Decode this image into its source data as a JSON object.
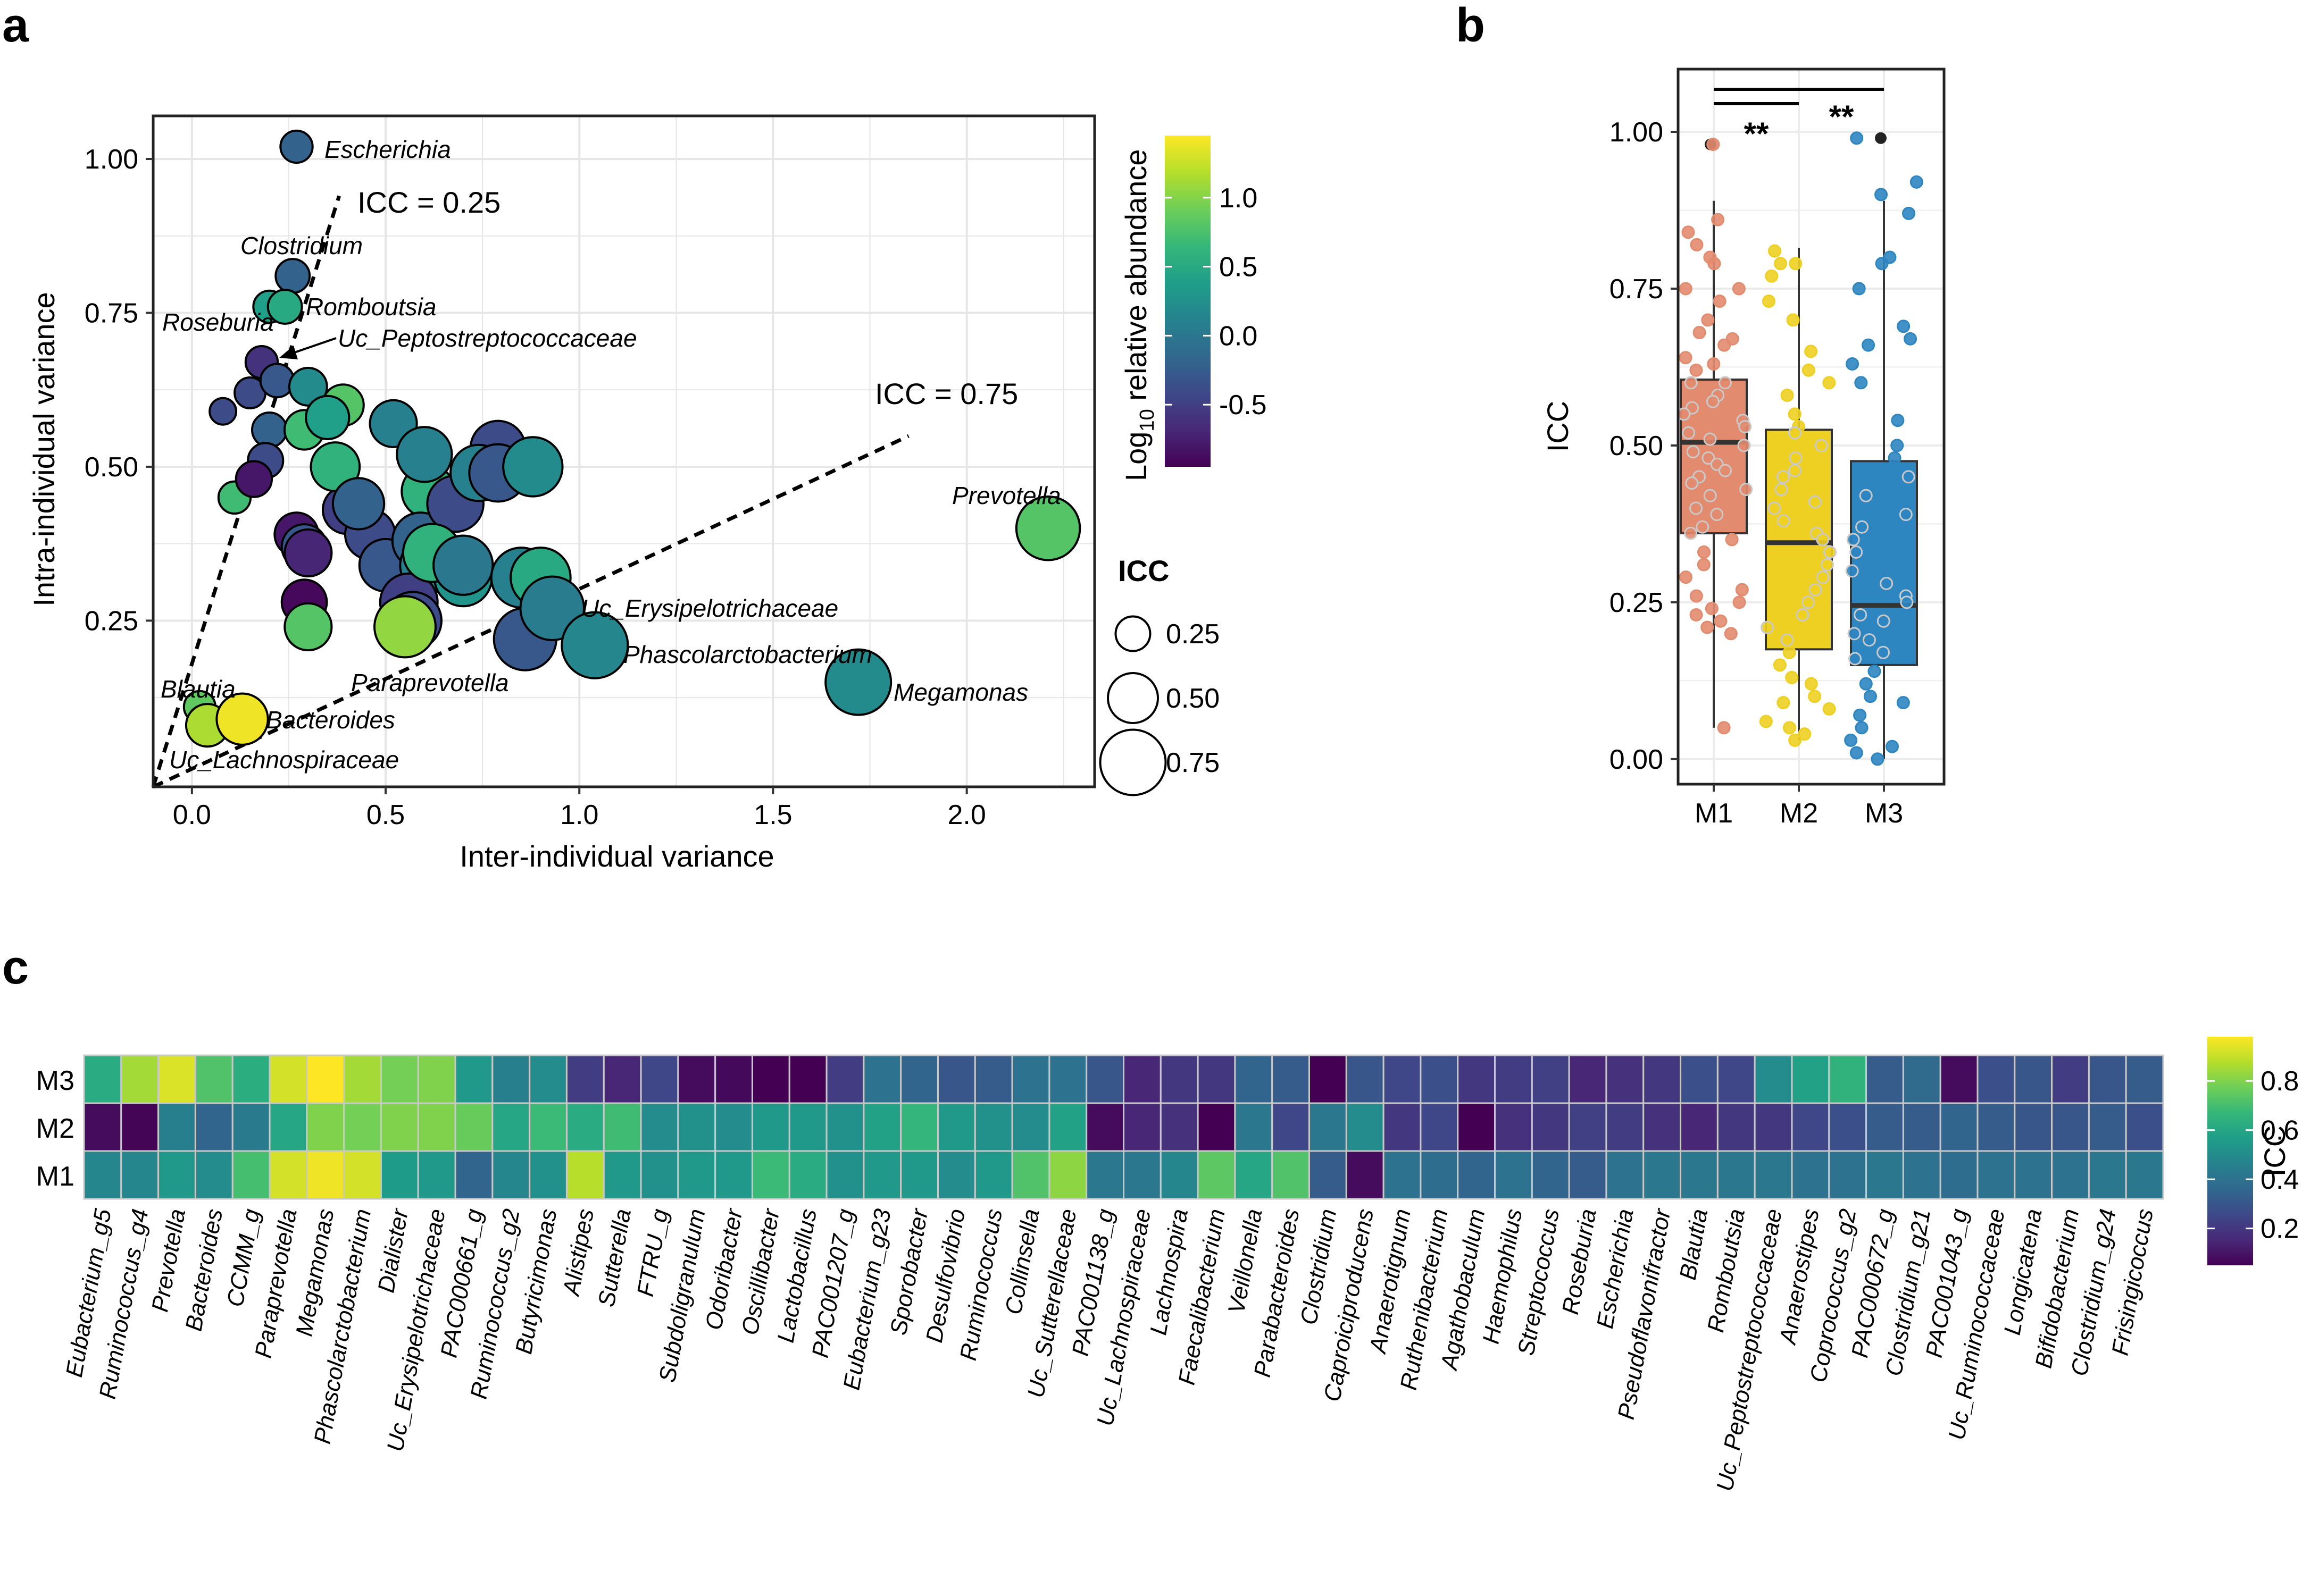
{
  "panels": {
    "a": "a",
    "b": "b",
    "c": "c"
  },
  "colors": {
    "viridis": [
      "#440154",
      "#482878",
      "#3e4989",
      "#31688e",
      "#26828e",
      "#1f9e89",
      "#35b779",
      "#6ece58",
      "#b5de2b",
      "#fde725"
    ],
    "M1": "#e28b6e",
    "M2": "#eed022",
    "M3": "#2e86c1"
  },
  "chart_data": [
    {
      "type": "scatter",
      "panel": "a",
      "xlabel": "Inter-individual variance",
      "ylabel": "Intra-individual variance",
      "xlim": [
        -0.1,
        2.33
      ],
      "ylim": [
        -0.02,
        1.07
      ],
      "xticks": [
        "0.0",
        "0.5",
        "1.0",
        "1.5",
        "2.0"
      ],
      "yticks": [
        "0.25",
        "0.50",
        "0.75",
        "1.00"
      ],
      "color_legend": {
        "title_main": "Log",
        "title_sub": "10",
        "title_rest": " relative abundance",
        "range": [
          -0.95,
          1.45
        ],
        "ticks": [
          "-0.5",
          "0.0",
          "0.5",
          "1.0"
        ]
      },
      "size_legend": {
        "title": "ICC",
        "entries": [
          "0.25",
          "0.50",
          "0.75"
        ]
      },
      "reference_lines": [
        {
          "label": "ICC = 0.25",
          "icc": 0.25
        },
        {
          "label": "ICC = 0.75",
          "icc": 0.75
        }
      ],
      "arrow_label": "Uc_Peptostreptococcaceae",
      "points": [
        {
          "name": "Escherichia",
          "x": 0.27,
          "y": 1.02,
          "icc": 0.21,
          "abundance": -0.2
        },
        {
          "name": "Clostridium",
          "x": 0.26,
          "y": 0.81,
          "icc": 0.24,
          "abundance": -0.2
        },
        {
          "name": "Romboutsia",
          "x": 0.24,
          "y": 0.76,
          "icc": 0.24,
          "abundance": 0.5
        },
        {
          "name": "Roseburia",
          "x": 0.2,
          "y": 0.76,
          "icc": 0.21,
          "abundance": 0.4
        },
        {
          "name": "Uc_Peptostreptococcaceae",
          "x": 0.18,
          "y": 0.67,
          "icc": 0.21,
          "abundance": -0.6
        },
        {
          "name": "",
          "x": 0.08,
          "y": 0.59,
          "icc": 0.12,
          "abundance": -0.4
        },
        {
          "name": "",
          "x": 0.15,
          "y": 0.62,
          "icc": 0.19,
          "abundance": -0.4
        },
        {
          "name": "",
          "x": 0.22,
          "y": 0.64,
          "icc": 0.23,
          "abundance": -0.3
        },
        {
          "name": "",
          "x": 0.3,
          "y": 0.63,
          "icc": 0.3,
          "abundance": 0.2
        },
        {
          "name": "",
          "x": 0.2,
          "y": 0.56,
          "icc": 0.25,
          "abundance": -0.2
        },
        {
          "name": "",
          "x": 0.29,
          "y": 0.56,
          "icc": 0.33,
          "abundance": 0.7
        },
        {
          "name": "",
          "x": 0.35,
          "y": 0.58,
          "icc": 0.39,
          "abundance": 0.4
        },
        {
          "name": "",
          "x": 0.39,
          "y": 0.6,
          "icc": 0.36,
          "abundance": 0.8
        },
        {
          "name": "",
          "x": 0.19,
          "y": 0.51,
          "icc": 0.26,
          "abundance": -0.4
        },
        {
          "name": "",
          "x": 0.16,
          "y": 0.48,
          "icc": 0.27,
          "abundance": -0.8
        },
        {
          "name": "",
          "x": 0.11,
          "y": 0.45,
          "icc": 0.21,
          "abundance": 0.7
        },
        {
          "name": "",
          "x": 0.37,
          "y": 0.5,
          "icc": 0.48,
          "abundance": 0.6
        },
        {
          "name": "",
          "x": 0.43,
          "y": 0.44,
          "icc": 0.52,
          "abundance": -0.2
        },
        {
          "name": "",
          "x": 0.52,
          "y": 0.57,
          "icc": 0.45,
          "abundance": 0.1
        },
        {
          "name": "",
          "x": 0.4,
          "y": 0.43,
          "icc": 0.47,
          "abundance": -0.5
        },
        {
          "name": "",
          "x": 0.27,
          "y": 0.39,
          "icc": 0.4,
          "abundance": -0.8
        },
        {
          "name": "",
          "x": 0.3,
          "y": 0.36,
          "icc": 0.45,
          "abundance": -0.7
        },
        {
          "name": "",
          "x": 0.29,
          "y": 0.37,
          "icc": 0.42,
          "abundance": -0.3
        },
        {
          "name": "",
          "x": 0.46,
          "y": 0.39,
          "icc": 0.5,
          "abundance": -0.4
        },
        {
          "name": "",
          "x": 0.5,
          "y": 0.34,
          "icc": 0.54,
          "abundance": -0.3
        },
        {
          "name": "",
          "x": 0.59,
          "y": 0.38,
          "icc": 0.6,
          "abundance": -0.2
        },
        {
          "name": "",
          "x": 0.62,
          "y": 0.36,
          "icc": 0.63,
          "abundance": 0.6
        },
        {
          "name": "",
          "x": 0.61,
          "y": 0.34,
          "icc": 0.6,
          "abundance": 0.1
        },
        {
          "name": "",
          "x": 0.7,
          "y": 0.34,
          "icc": 0.65,
          "abundance": 0.0
        },
        {
          "name": "",
          "x": 0.7,
          "y": 0.32,
          "icc": 0.62,
          "abundance": 0.3
        },
        {
          "name": "",
          "x": 0.6,
          "y": 0.52,
          "icc": 0.58,
          "abundance": 0.1
        },
        {
          "name": "",
          "x": 0.61,
          "y": 0.46,
          "icc": 0.55,
          "abundance": 0.6
        },
        {
          "name": "",
          "x": 0.68,
          "y": 0.44,
          "icc": 0.6,
          "abundance": -0.4
        },
        {
          "name": "",
          "x": 0.74,
          "y": 0.49,
          "icc": 0.6,
          "abundance": 0.1
        },
        {
          "name": "",
          "x": 0.79,
          "y": 0.49,
          "icc": 0.62,
          "abundance": -0.3
        },
        {
          "name": "",
          "x": 0.79,
          "y": 0.53,
          "icc": 0.58,
          "abundance": -0.4
        },
        {
          "name": "",
          "x": 0.88,
          "y": 0.5,
          "icc": 0.65,
          "abundance": 0.2
        },
        {
          "name": "",
          "x": 0.85,
          "y": 0.32,
          "icc": 0.66,
          "abundance": 0.1
        },
        {
          "name": "",
          "x": 0.9,
          "y": 0.32,
          "icc": 0.66,
          "abundance": 0.5
        },
        {
          "name": "",
          "x": 0.56,
          "y": 0.28,
          "icc": 0.62,
          "abundance": -0.5
        },
        {
          "name": "",
          "x": 0.57,
          "y": 0.25,
          "icc": 0.62,
          "abundance": -0.4
        },
        {
          "name": "",
          "x": 0.29,
          "y": 0.28,
          "icc": 0.42,
          "abundance": -0.9
        },
        {
          "name": "",
          "x": 0.3,
          "y": 0.24,
          "icc": 0.45,
          "abundance": 0.8
        },
        {
          "name": "Paraprevotella",
          "x": 0.55,
          "y": 0.24,
          "icc": 0.68,
          "abundance": 1.05
        },
        {
          "name": "Uc_Erysipelotrichaceae",
          "x": 0.93,
          "y": 0.27,
          "icc": 0.72,
          "abundance": 0.05
        },
        {
          "name": "",
          "x": 0.86,
          "y": 0.22,
          "icc": 0.7,
          "abundance": -0.3
        },
        {
          "name": "Phascolarctobacterium",
          "x": 1.04,
          "y": 0.21,
          "icc": 0.76,
          "abundance": 0.15
        },
        {
          "name": "Prevotella",
          "x": 2.21,
          "y": 0.4,
          "icc": 0.72,
          "abundance": 0.8
        },
        {
          "name": "Megamonas",
          "x": 1.72,
          "y": 0.15,
          "icc": 0.75,
          "abundance": 0.2
        },
        {
          "name": "Blautia",
          "x": 0.02,
          "y": 0.11,
          "icc": 0.2,
          "abundance": 0.85
        },
        {
          "name": "Uc_Lachnospiraceae",
          "x": 0.04,
          "y": 0.08,
          "icc": 0.38,
          "abundance": 1.15
        },
        {
          "name": "Bacteroides",
          "x": 0.13,
          "y": 0.09,
          "icc": 0.52,
          "abundance": 1.4
        }
      ]
    },
    {
      "type": "box",
      "panel": "b",
      "ylabel": "ICC",
      "ylim": [
        -0.04,
        1.1
      ],
      "yticks": [
        "0.00",
        "0.25",
        "0.50",
        "0.75",
        "1.00"
      ],
      "categories": [
        "M1",
        "M2",
        "M3"
      ],
      "significance": [
        {
          "from": "M1",
          "to": "M2",
          "label": "**"
        },
        {
          "from": "M1",
          "to": "M3",
          "label": "**"
        }
      ],
      "boxes": [
        {
          "name": "M1",
          "min": 0.05,
          "q1": 0.36,
          "median": 0.505,
          "q3": 0.605,
          "max": 0.89,
          "outlier": 0.98
        },
        {
          "name": "M2",
          "min": 0.03,
          "q1": 0.175,
          "median": 0.345,
          "q3": 0.525,
          "max": 0.815,
          "outlier": null
        },
        {
          "name": "M3",
          "min": 0.0,
          "q1": 0.15,
          "median": 0.245,
          "q3": 0.475,
          "max": 0.89,
          "outlier": 0.99
        }
      ],
      "jitter": {
        "M1": [
          0.98,
          0.86,
          0.84,
          0.82,
          0.8,
          0.79,
          0.75,
          0.75,
          0.73,
          0.7,
          0.68,
          0.67,
          0.66,
          0.64,
          0.63,
          0.62,
          0.6,
          0.6,
          0.58,
          0.57,
          0.56,
          0.55,
          0.54,
          0.53,
          0.52,
          0.51,
          0.5,
          0.49,
          0.48,
          0.47,
          0.46,
          0.45,
          0.44,
          0.43,
          0.42,
          0.4,
          0.39,
          0.37,
          0.36,
          0.35,
          0.33,
          0.31,
          0.29,
          0.27,
          0.26,
          0.25,
          0.24,
          0.23,
          0.22,
          0.21,
          0.2,
          0.05
        ],
        "M2": [
          0.81,
          0.79,
          0.79,
          0.77,
          0.73,
          0.7,
          0.65,
          0.62,
          0.6,
          0.58,
          0.55,
          0.53,
          0.52,
          0.5,
          0.48,
          0.46,
          0.45,
          0.43,
          0.41,
          0.4,
          0.38,
          0.36,
          0.35,
          0.33,
          0.31,
          0.29,
          0.27,
          0.25,
          0.23,
          0.21,
          0.19,
          0.17,
          0.15,
          0.13,
          0.12,
          0.1,
          0.09,
          0.08,
          0.06,
          0.05,
          0.04,
          0.03
        ],
        "M3": [
          0.99,
          0.92,
          0.9,
          0.87,
          0.8,
          0.79,
          0.75,
          0.69,
          0.67,
          0.66,
          0.63,
          0.6,
          0.54,
          0.5,
          0.48,
          0.45,
          0.42,
          0.39,
          0.37,
          0.35,
          0.33,
          0.3,
          0.28,
          0.26,
          0.25,
          0.23,
          0.22,
          0.2,
          0.19,
          0.17,
          0.16,
          0.14,
          0.12,
          0.1,
          0.09,
          0.07,
          0.05,
          0.03,
          0.02,
          0.01,
          0.0
        ]
      }
    },
    {
      "type": "heatmap",
      "panel": "c",
      "rows": [
        "M3",
        "M2",
        "M1"
      ],
      "colorbar": {
        "title": "ICC",
        "range": [
          0.05,
          0.98
        ],
        "ticks": [
          "0.8",
          "0.6",
          "0.4",
          "0.2"
        ]
      },
      "columns": [
        "Eubacterium_g5",
        "Ruminococcus_g4",
        "Prevotella",
        "Bacteroides",
        "CCMM_g",
        "Paraprevotella",
        "Megamonas",
        "Phascolarctobacterium",
        "Dialister",
        "Uc_Erysipelotrichaceae",
        "PAC000661_g",
        "Ruminococcus_g2",
        "Butyricimonas",
        "Alistipes",
        "Sutterella",
        "FTRU_g",
        "Subdoligranulum",
        "Odoribacter",
        "Oscillibacter",
        "Lactobacillus",
        "PAC001207_g",
        "Eubacterium_g23",
        "Sporobacter",
        "Desulfovibrio",
        "Ruminococcus",
        "Collinsella",
        "Uc_Sutterellaceae",
        "PAC001138_g",
        "Uc_Lachnospiraceae",
        "Lachnospira",
        "Faecalibacterium",
        "Veillonella",
        "Parabacteroides",
        "Clostridium",
        "Caproiciproducens",
        "Anaerotignum",
        "Ruthenibacterium",
        "Agathobaculum",
        "Haemophilus",
        "Streptococcus",
        "Roseburia",
        "Escherichia",
        "Pseudoflavonifractor",
        "Blautia",
        "Romboutsia",
        "Uc_Peptostreptococcaceae",
        "Anaerostipes",
        "Coprococcus_g2",
        "PAC000672_g",
        "Clostridium_g21",
        "PAC001043_g",
        "Uc_Ruminococcaceae",
        "Longicatena",
        "Bifidobacterium",
        "Clostridium_g24",
        "Frisingicoccus"
      ],
      "values": {
        "M3": [
          0.62,
          0.85,
          0.93,
          0.72,
          0.63,
          0.92,
          0.98,
          0.85,
          0.78,
          0.8,
          0.55,
          0.45,
          0.5,
          0.22,
          0.15,
          0.25,
          0.08,
          0.07,
          0.05,
          0.05,
          0.22,
          0.4,
          0.35,
          0.3,
          0.32,
          0.4,
          0.4,
          0.3,
          0.15,
          0.2,
          0.2,
          0.35,
          0.32,
          0.05,
          0.3,
          0.25,
          0.28,
          0.2,
          0.22,
          0.23,
          0.15,
          0.18,
          0.2,
          0.28,
          0.25,
          0.5,
          0.58,
          0.65,
          0.32,
          0.37,
          0.08,
          0.28,
          0.3,
          0.22,
          0.3,
          0.32
        ],
        "M2": [
          0.08,
          0.06,
          0.45,
          0.35,
          0.43,
          0.6,
          0.8,
          0.78,
          0.8,
          0.8,
          0.76,
          0.6,
          0.68,
          0.62,
          0.69,
          0.5,
          0.52,
          0.5,
          0.55,
          0.55,
          0.52,
          0.58,
          0.66,
          0.55,
          0.52,
          0.5,
          0.58,
          0.08,
          0.15,
          0.18,
          0.05,
          0.42,
          0.25,
          0.42,
          0.5,
          0.2,
          0.25,
          0.05,
          0.18,
          0.2,
          0.23,
          0.22,
          0.18,
          0.15,
          0.2,
          0.2,
          0.25,
          0.28,
          0.32,
          0.32,
          0.35,
          0.32,
          0.3,
          0.3,
          0.32,
          0.28
        ],
        "M1": [
          0.48,
          0.48,
          0.55,
          0.5,
          0.7,
          0.92,
          0.96,
          0.92,
          0.56,
          0.55,
          0.35,
          0.48,
          0.52,
          0.88,
          0.55,
          0.52,
          0.55,
          0.55,
          0.68,
          0.62,
          0.52,
          0.55,
          0.55,
          0.5,
          0.55,
          0.72,
          0.82,
          0.42,
          0.42,
          0.48,
          0.74,
          0.6,
          0.72,
          0.32,
          0.08,
          0.4,
          0.38,
          0.35,
          0.4,
          0.35,
          0.32,
          0.4,
          0.42,
          0.42,
          0.42,
          0.42,
          0.4,
          0.4,
          0.42,
          0.4,
          0.38,
          0.4,
          0.4,
          0.4,
          0.42,
          0.42
        ]
      }
    }
  ]
}
